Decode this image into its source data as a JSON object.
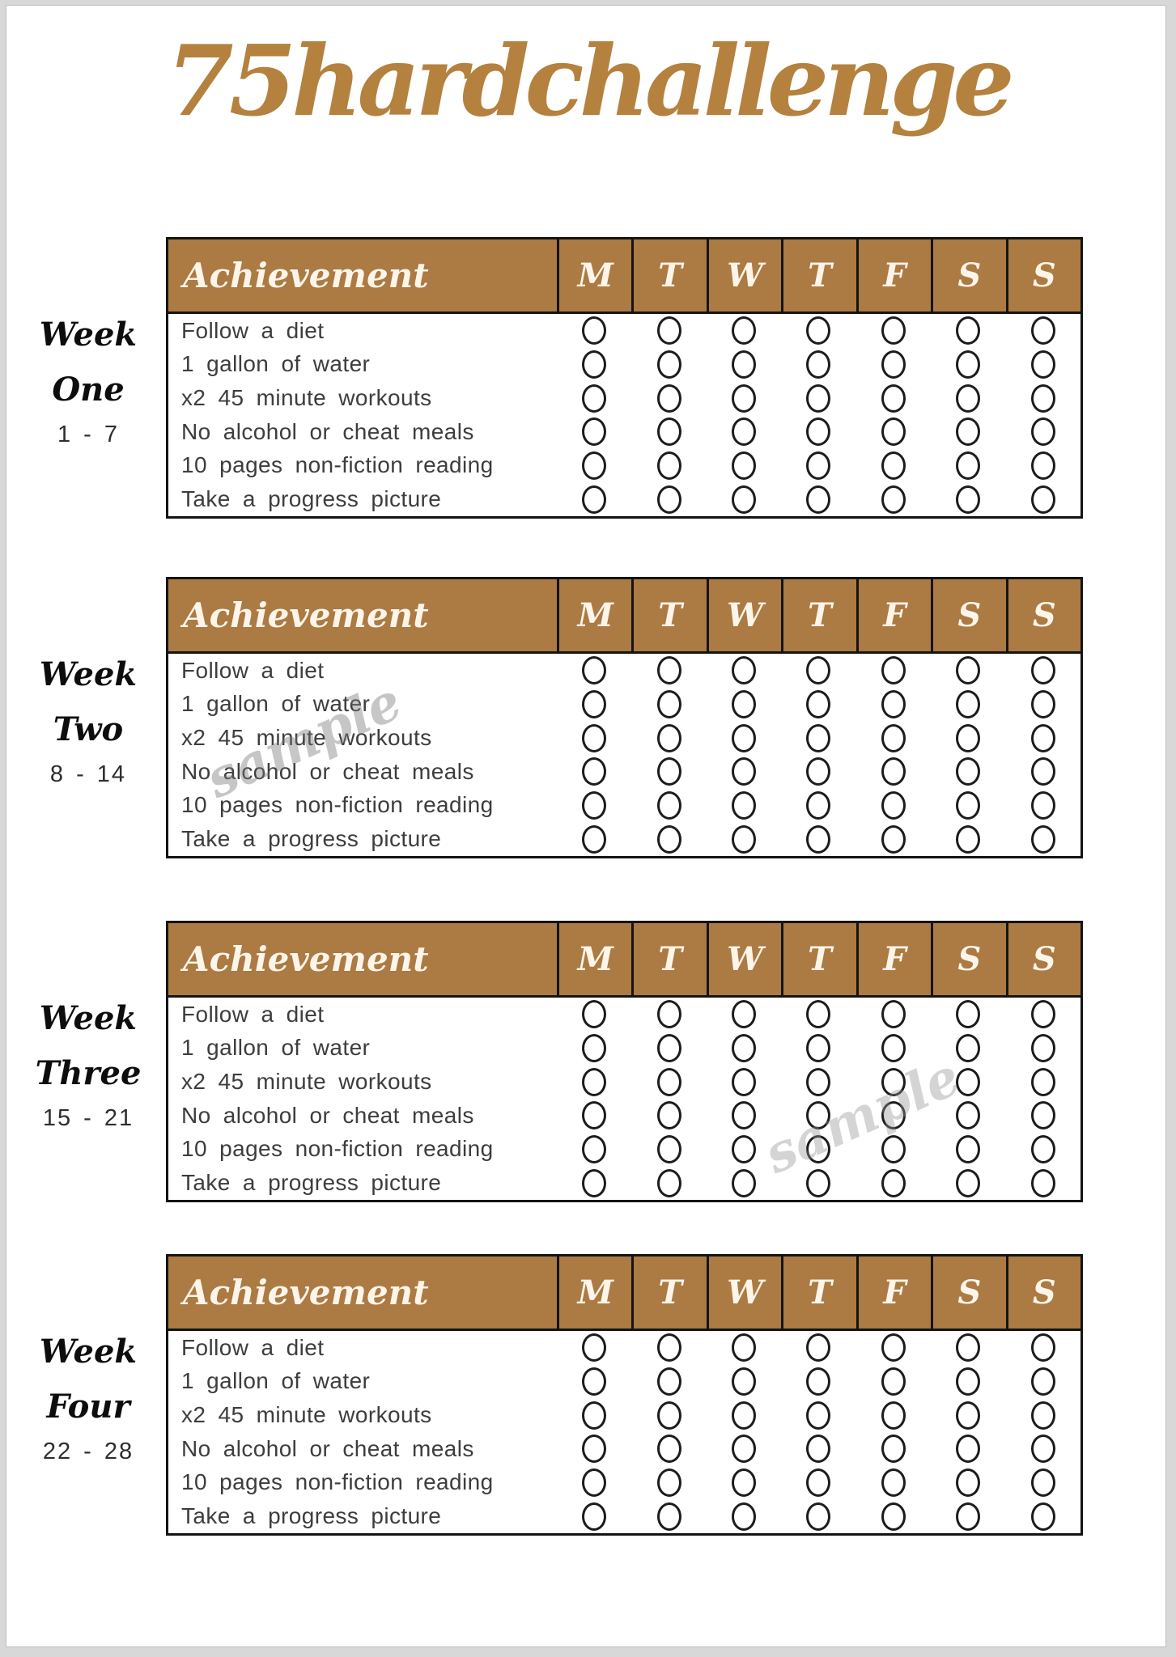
{
  "page": {
    "title": "75hardchallenge",
    "colors": {
      "accent_brown": "#ac7a43",
      "title_bronze": "#b5813e",
      "header_text": "#fdf5e9"
    }
  },
  "table": {
    "achievement_label": "Achievement",
    "day_headers": [
      "M",
      "T",
      "W",
      "T",
      "F",
      "S",
      "S"
    ],
    "tasks": [
      "Follow a diet",
      "1 gallon of water",
      "x2 45 minute workouts",
      "No alcohol or cheat meals",
      "10 pages non-fiction reading",
      "Take a progress picture"
    ]
  },
  "weeks": [
    {
      "word": "Week",
      "number_word": "One",
      "day_range": "1 - 7"
    },
    {
      "word": "Week",
      "number_word": "Two",
      "day_range": "8 - 14"
    },
    {
      "word": "Week",
      "number_word": "Three",
      "day_range": "15 - 21"
    },
    {
      "word": "Week",
      "number_word": "Four",
      "day_range": "22 - 28"
    }
  ],
  "watermark": {
    "text": "sample"
  }
}
